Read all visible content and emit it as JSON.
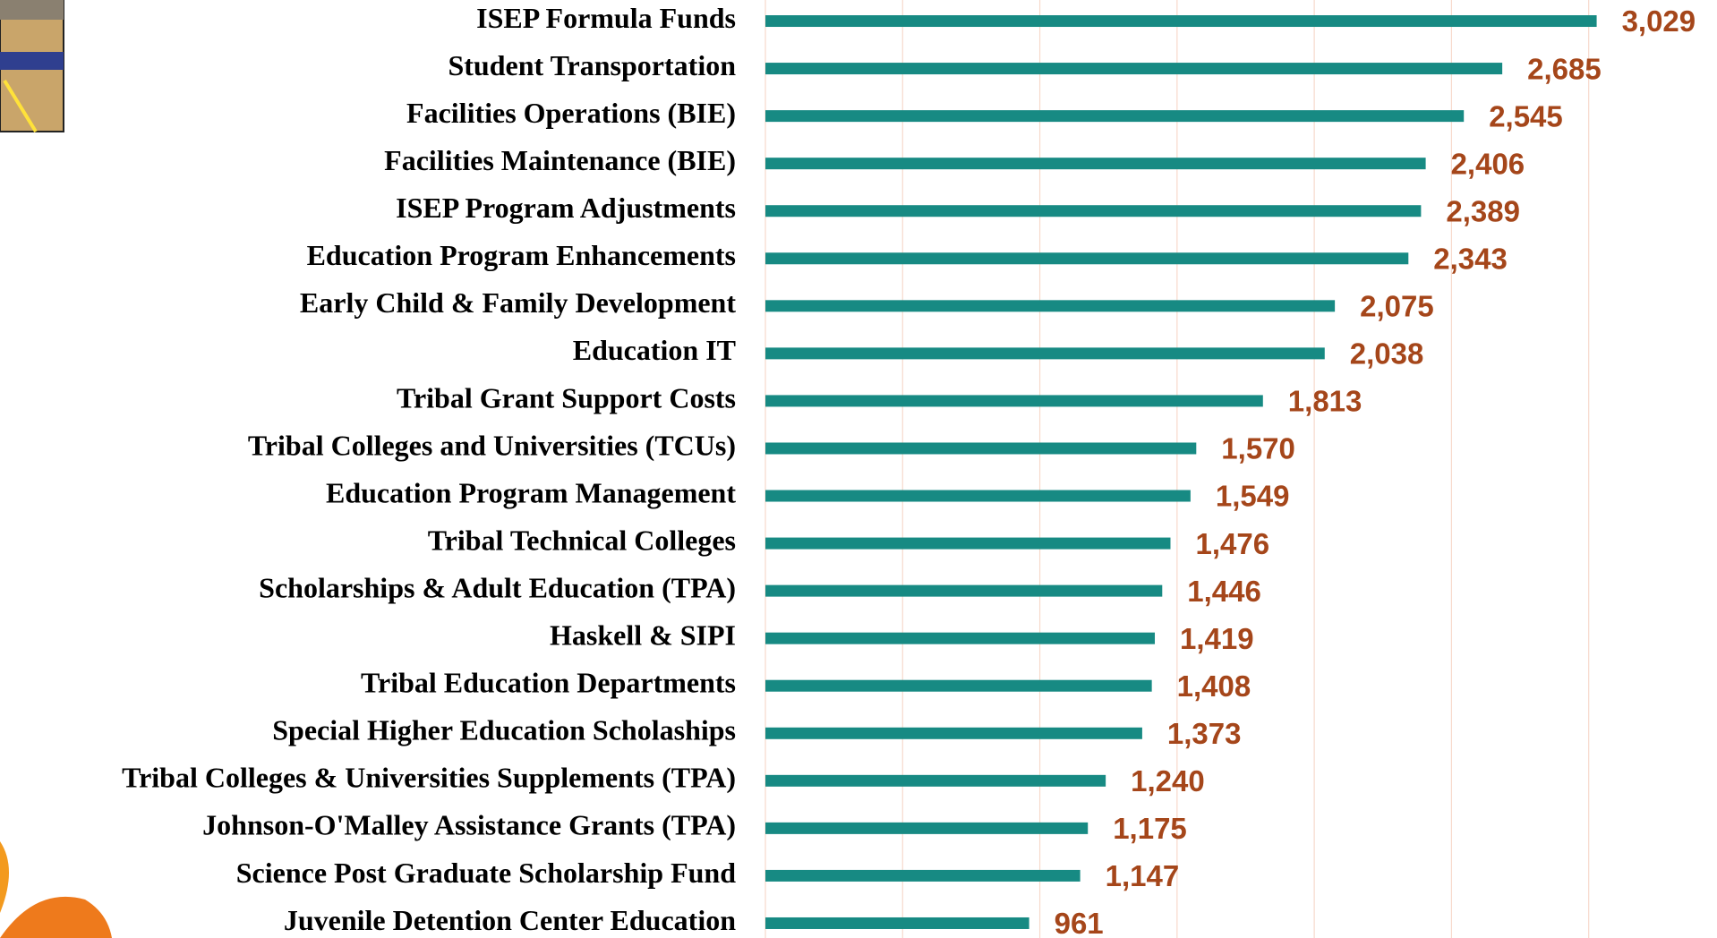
{
  "chart_data": {
    "type": "bar",
    "orientation": "horizontal",
    "color": "#178a83",
    "grid": true,
    "categories": [
      "ISEP Formula Funds",
      "Student Transportation",
      "Facilities Operations (BIE)",
      "Facilities Maintenance (BIE)",
      "ISEP Program Adjustments",
      "Education Program Enhancements",
      "Early Child & Family Development",
      "Education IT",
      "Tribal Grant Support Costs",
      "Tribal Colleges and Universities (TCUs)",
      "Education Program Management",
      "Tribal Technical Colleges",
      "Scholarships & Adult Education (TPA)",
      "Haskell & SIPI",
      "Tribal Education Departments",
      "Special Higher Education Scholaships",
      "Tribal Colleges & Universities Supplements (TPA)",
      "Johnson-O'Malley Assistance Grants (TPA)",
      "Science Post Graduate Scholarship Fund",
      "Juvenile Detention Center Education"
    ],
    "values": [
      3029,
      2685,
      2545,
      2406,
      2389,
      2343,
      2075,
      2038,
      1813,
      1570,
      1549,
      1476,
      1446,
      1419,
      1408,
      1373,
      1240,
      1175,
      1147,
      961
    ],
    "value_labels": [
      "3,029",
      "2,685",
      "2,545",
      "2,406",
      "2,389",
      "2,343",
      "2,075",
      "2,038",
      "1,813",
      "1,570",
      "1,549",
      "1,476",
      "1,446",
      "1,419",
      "1,408",
      "1,373",
      "1,240",
      "1,175",
      "1,147",
      "961"
    ],
    "xlim": [
      0,
      3200
    ],
    "xticks": [
      0,
      500,
      1000,
      1500,
      2000,
      2500,
      3000
    ]
  }
}
